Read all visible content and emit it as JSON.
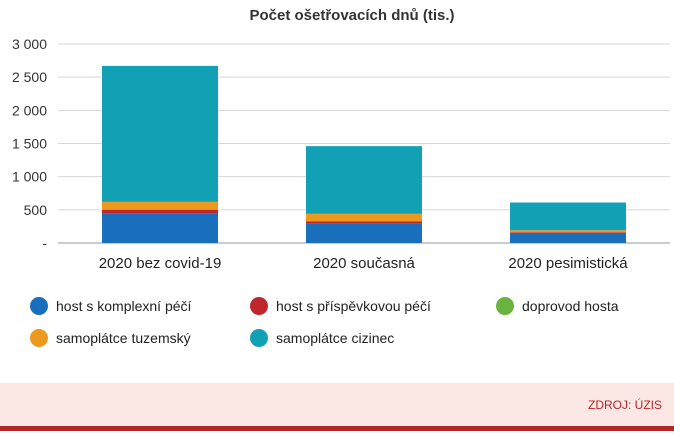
{
  "chart_data": {
    "type": "bar",
    "stacked": true,
    "title": "Počet ošetřovacích dnů (tis.)",
    "categories": [
      "2020 bez covid-19",
      "2020 současná",
      "2020 pesimistická"
    ],
    "series": [
      {
        "name": "host s komplexní péčí",
        "color": "#1a6fbd",
        "values": [
          450,
          290,
          150
        ]
      },
      {
        "name": "host s příspěvkovou péčí",
        "color": "#c0272d",
        "values": [
          50,
          35,
          10
        ]
      },
      {
        "name": "doprovod hosta",
        "color": "#6ab33e",
        "values": [
          5,
          5,
          2
        ]
      },
      {
        "name": "samoplátce tuzemský",
        "color": "#ec9a1e",
        "values": [
          115,
          110,
          30
        ]
      },
      {
        "name": "samoplátce cizinec",
        "color": "#12a0b5",
        "values": [
          2050,
          1020,
          418
        ]
      }
    ],
    "ylim": [
      0,
      3000
    ],
    "yticks": [
      0,
      500,
      1000,
      1500,
      2000,
      2500,
      3000
    ],
    "ytick_labels": [
      "-",
      "500",
      "1 000",
      "1 500",
      "2 000",
      "2 500",
      "3 000"
    ],
    "grid": true,
    "legend_position": "bottom"
  },
  "footer": {
    "source": "ZDROJ: ÚZIS"
  }
}
